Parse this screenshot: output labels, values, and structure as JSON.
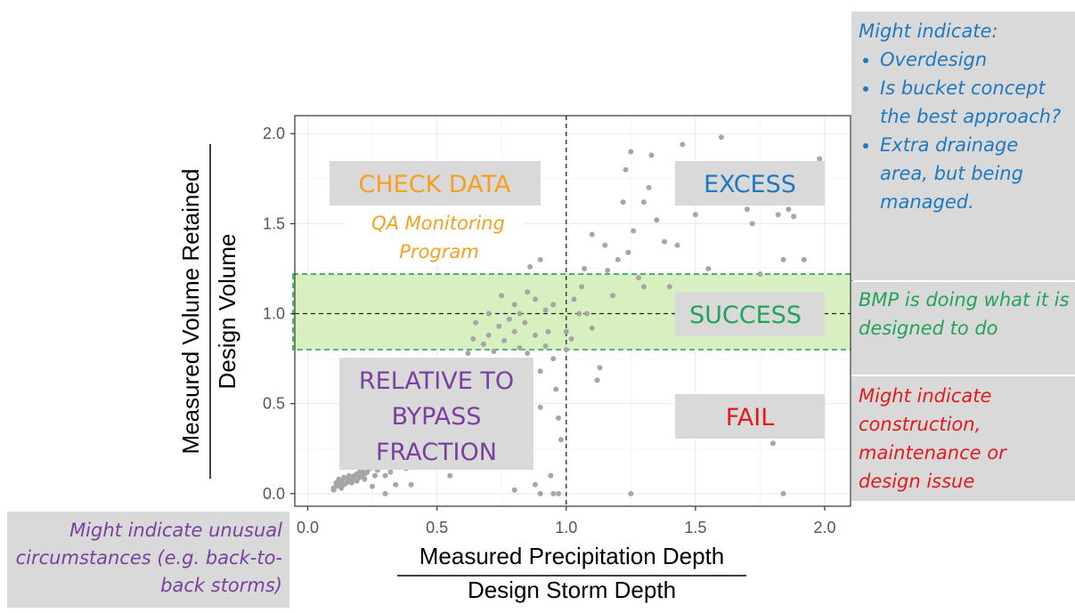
{
  "chart_data": {
    "type": "scatter",
    "xlabel_top": "Measured Precipitation Depth",
    "xlabel_bottom": "Design Storm Depth",
    "ylabel_top": "Measured Volume Retained",
    "ylabel_bottom": "Design Volume",
    "xlim": [
      -0.05,
      2.1
    ],
    "ylim": [
      -0.07,
      2.1
    ],
    "xticks": [
      0.0,
      0.5,
      1.0,
      1.5,
      2.0
    ],
    "xtick_labels": [
      "0.0",
      "0.5",
      "1.0",
      "1.5",
      "2.0"
    ],
    "yticks": [
      0.0,
      0.5,
      1.0,
      1.5,
      2.0
    ],
    "ytick_labels": [
      "0.0",
      "0.5",
      "1.0",
      "1.5",
      "2.0"
    ],
    "grid": true,
    "reference_lines": {
      "vertical_x": 1.0,
      "horizontal_y": 1.0
    },
    "success_band": {
      "y_min": 0.8,
      "y_max": 1.22,
      "color": "#d8f0c0",
      "border_color": "#22a35a"
    },
    "point_color": "#a6a6a6",
    "points": [
      [
        0.1,
        0.02
      ],
      [
        0.1,
        0.03
      ],
      [
        0.11,
        0.04
      ],
      [
        0.11,
        0.06
      ],
      [
        0.12,
        0.05
      ],
      [
        0.12,
        0.08
      ],
      [
        0.13,
        0.07
      ],
      [
        0.13,
        0.03
      ],
      [
        0.14,
        0.05
      ],
      [
        0.14,
        0.09
      ],
      [
        0.15,
        0.06
      ],
      [
        0.15,
        0.08
      ],
      [
        0.16,
        0.07
      ],
      [
        0.16,
        0.1
      ],
      [
        0.17,
        0.09
      ],
      [
        0.17,
        0.06
      ],
      [
        0.18,
        0.08
      ],
      [
        0.18,
        0.1
      ],
      [
        0.19,
        0.11
      ],
      [
        0.19,
        0.07
      ],
      [
        0.2,
        0.09
      ],
      [
        0.2,
        0.12
      ],
      [
        0.21,
        0.1
      ],
      [
        0.21,
        0.13
      ],
      [
        0.22,
        0.11
      ],
      [
        0.22,
        0.08
      ],
      [
        0.23,
        0.12
      ],
      [
        0.24,
        0.14
      ],
      [
        0.25,
        0.04
      ],
      [
        0.26,
        0.1
      ],
      [
        0.27,
        0.13
      ],
      [
        0.28,
        0.15
      ],
      [
        0.3,
        0.0
      ],
      [
        0.3,
        0.1
      ],
      [
        0.32,
        0.12
      ],
      [
        0.34,
        0.05
      ],
      [
        0.36,
        0.18
      ],
      [
        0.38,
        0.14
      ],
      [
        0.4,
        0.05
      ],
      [
        0.4,
        0.16
      ],
      [
        0.42,
        0.2
      ],
      [
        0.44,
        0.22
      ],
      [
        0.46,
        0.19
      ],
      [
        0.48,
        0.26
      ],
      [
        0.5,
        0.15
      ],
      [
        0.5,
        0.3
      ],
      [
        0.52,
        0.28
      ],
      [
        0.54,
        0.35
      ],
      [
        0.55,
        0.1
      ],
      [
        0.56,
        0.4
      ],
      [
        0.58,
        0.55
      ],
      [
        0.6,
        0.48
      ],
      [
        0.6,
        0.7
      ],
      [
        0.62,
        0.78
      ],
      [
        0.64,
        0.86
      ],
      [
        0.65,
        0.95
      ],
      [
        0.66,
        0.72
      ],
      [
        0.68,
        0.83
      ],
      [
        0.7,
        0.88
      ],
      [
        0.7,
        1.0
      ],
      [
        0.72,
        0.79
      ],
      [
        0.74,
        0.93
      ],
      [
        0.75,
        1.1
      ],
      [
        0.75,
        0.6
      ],
      [
        0.76,
        0.85
      ],
      [
        0.78,
        0.97
      ],
      [
        0.8,
        0.9
      ],
      [
        0.8,
        1.05
      ],
      [
        0.82,
        0.81
      ],
      [
        0.82,
        1.0
      ],
      [
        0.84,
        0.95
      ],
      [
        0.85,
        1.12
      ],
      [
        0.85,
        0.78
      ],
      [
        0.86,
        1.26
      ],
      [
        0.88,
        1.08
      ],
      [
        0.88,
        0.88
      ],
      [
        0.9,
        1.3
      ],
      [
        0.9,
        0.68
      ],
      [
        0.9,
        0.48
      ],
      [
        0.92,
        1.02
      ],
      [
        0.92,
        0.82
      ],
      [
        0.93,
        0.9
      ],
      [
        0.95,
        1.05
      ],
      [
        0.95,
        0.75
      ],
      [
        0.96,
        0.58
      ],
      [
        0.97,
        0.42
      ],
      [
        0.98,
        0.3
      ],
      [
        1.0,
        0.8
      ],
      [
        1.0,
        0.9
      ],
      [
        1.02,
        0.86
      ],
      [
        1.03,
        1.08
      ],
      [
        1.05,
        1.0
      ],
      [
        1.06,
        1.15
      ],
      [
        1.07,
        1.25
      ],
      [
        1.08,
        1.0
      ],
      [
        1.1,
        1.44
      ],
      [
        1.1,
        0.92
      ],
      [
        1.12,
        0.63
      ],
      [
        1.13,
        0.7
      ],
      [
        1.15,
        1.38
      ],
      [
        1.16,
        1.24
      ],
      [
        1.18,
        1.1
      ],
      [
        1.2,
        1.3
      ],
      [
        1.22,
        1.62
      ],
      [
        1.23,
        1.8
      ],
      [
        1.24,
        1.34
      ],
      [
        1.25,
        1.9
      ],
      [
        1.26,
        1.46
      ],
      [
        1.28,
        1.2
      ],
      [
        1.3,
        1.62
      ],
      [
        1.3,
        1.15
      ],
      [
        1.32,
        1.7
      ],
      [
        1.33,
        1.88
      ],
      [
        1.35,
        1.52
      ],
      [
        1.38,
        1.4
      ],
      [
        1.4,
        1.15
      ],
      [
        1.43,
        1.38
      ],
      [
        1.45,
        1.94
      ],
      [
        1.5,
        1.55
      ],
      [
        1.55,
        1.25
      ],
      [
        1.6,
        1.98
      ],
      [
        1.65,
        1.66
      ],
      [
        1.7,
        1.58
      ],
      [
        1.72,
        1.5
      ],
      [
        1.75,
        1.22
      ],
      [
        1.8,
        0.28
      ],
      [
        1.82,
        1.55
      ],
      [
        1.84,
        1.3
      ],
      [
        1.86,
        1.58
      ],
      [
        1.88,
        1.54
      ],
      [
        1.92,
        1.3
      ],
      [
        1.98,
        1.86
      ],
      [
        0.9,
        0.0
      ],
      [
        0.95,
        0.0
      ],
      [
        0.97,
        0.0
      ],
      [
        1.25,
        0.0
      ],
      [
        1.84,
        0.0
      ],
      [
        0.88,
        0.05
      ],
      [
        0.94,
        0.1
      ],
      [
        0.8,
        0.02
      ]
    ]
  },
  "zones": {
    "check_data": {
      "title": "CHECK DATA",
      "subtitle_line1": "QA Monitoring",
      "subtitle_line2": "Program"
    },
    "excess": {
      "title": "EXCESS"
    },
    "success": {
      "title": "SUCCESS"
    },
    "fail": {
      "title": "FAIL"
    },
    "bypass": {
      "line1": "RELATIVE TO",
      "line2": "BYPASS",
      "line3": "FRACTION"
    }
  },
  "notes": {
    "excess": {
      "heading": "Might indicate:",
      "items": [
        "Overdesign",
        "Is bucket concept the best approach?",
        "Extra drainage area, but being managed."
      ]
    },
    "success": {
      "text": "BMP is doing what it is designed to do"
    },
    "fail": {
      "text": "Might indicate construction, maintenance or design issue"
    },
    "bypass": {
      "text": "Might indicate unusual circumstances (e.g. back-to-back storms)"
    }
  },
  "colors": {
    "orange": "#f5a020",
    "blue": "#1f78c0",
    "green": "#22a35a",
    "red": "#e31a1c",
    "purple": "#7a3fa0",
    "label_box": "#d9d9d9"
  }
}
